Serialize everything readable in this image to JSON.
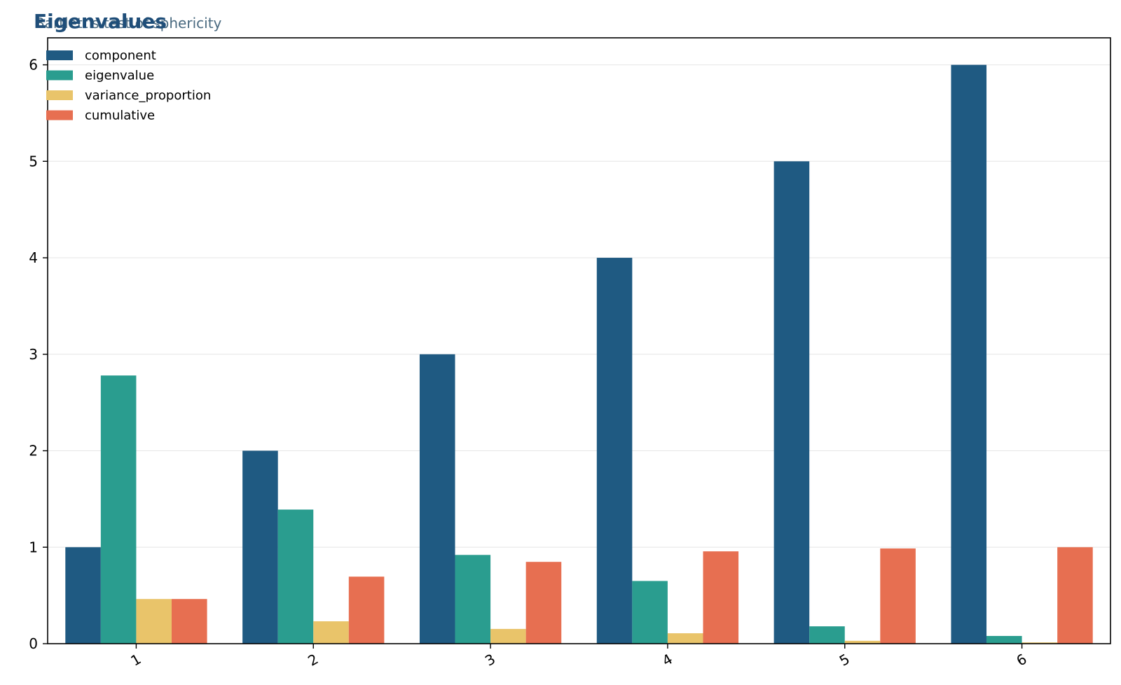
{
  "chart_data": {
    "type": "bar",
    "title": "Eigenvalues",
    "subtitle": "Bartlett's test of sphericity",
    "categories": [
      "1",
      "2",
      "3",
      "4",
      "5",
      "6"
    ],
    "series": [
      {
        "name": "component",
        "color": "#1f5a82",
        "values": [
          1,
          2,
          3,
          4,
          5,
          6
        ]
      },
      {
        "name": "eigenvalue",
        "color": "#2a9d8f",
        "values": [
          2.78,
          1.39,
          0.92,
          0.65,
          0.18,
          0.08
        ]
      },
      {
        "name": "variance_proportion",
        "color": "#e9c46a",
        "values": [
          0.463,
          0.232,
          0.153,
          0.108,
          0.03,
          0.013
        ]
      },
      {
        "name": "cumulative",
        "color": "#e76f51",
        "values": [
          0.463,
          0.695,
          0.848,
          0.957,
          0.987,
          1.0
        ]
      }
    ],
    "yticks": [
      "0",
      "1",
      "2",
      "3",
      "4",
      "5",
      "6"
    ],
    "ylim": [
      0,
      6.28
    ],
    "grid": "y",
    "legend": "top-left",
    "xlabel": "",
    "ylabel": ""
  }
}
